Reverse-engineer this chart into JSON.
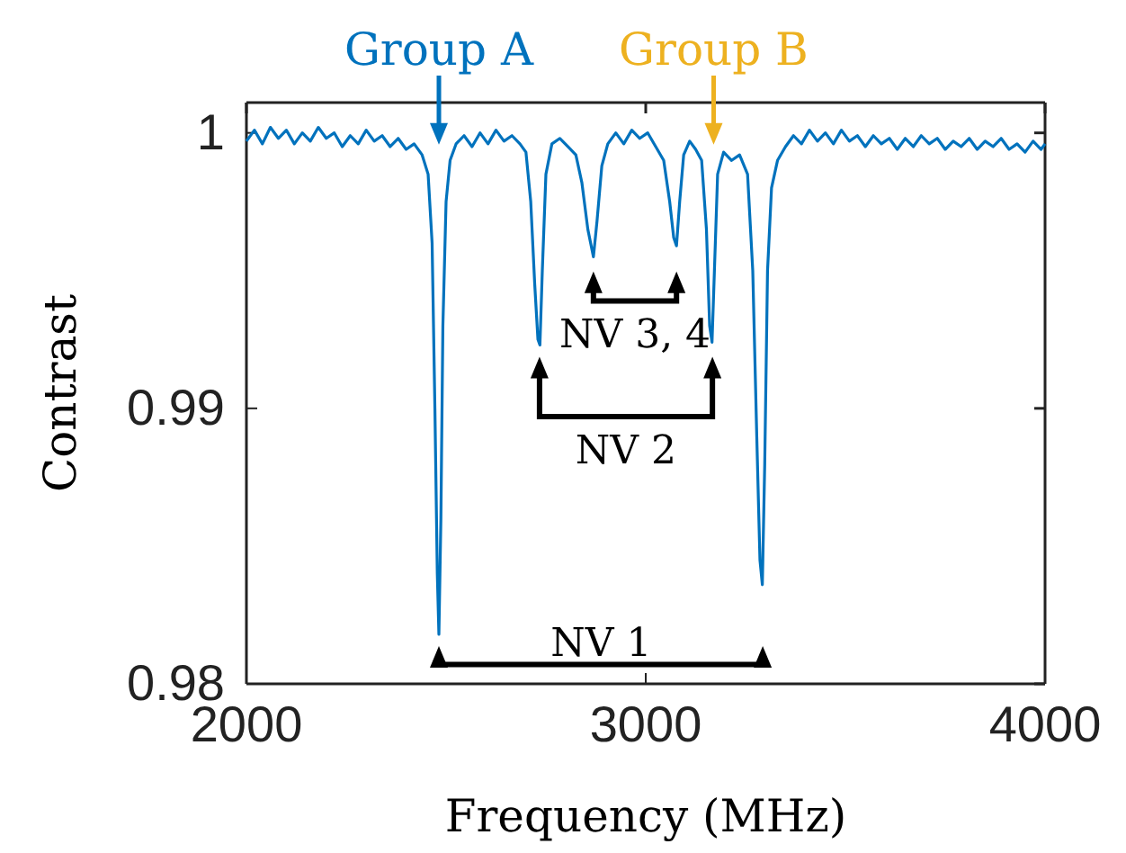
{
  "chart_data": {
    "type": "line",
    "xlabel": "Frequency (MHz)",
    "ylabel": "Contrast",
    "xlim": [
      2000,
      4000
    ],
    "xticks": [
      2000,
      3000,
      4000
    ],
    "ylim": [
      0.98,
      1.0011
    ],
    "yticks": [
      {
        "value": 1,
        "label": "1"
      },
      0.99,
      0.98
    ],
    "grid": false,
    "series": [
      {
        "color": "#0072bd",
        "x": [
          2000,
          2020,
          2040,
          2060,
          2080,
          2100,
          2120,
          2140,
          2160,
          2180,
          2200,
          2220,
          2240,
          2260,
          2280,
          2300,
          2320,
          2340,
          2360,
          2380,
          2400,
          2420,
          2440,
          2455,
          2465,
          2472,
          2478,
          2482,
          2487,
          2492,
          2500,
          2510,
          2525,
          2545,
          2565,
          2585,
          2605,
          2625,
          2645,
          2665,
          2685,
          2700,
          2712,
          2722,
          2730,
          2735,
          2741,
          2750,
          2765,
          2785,
          2805,
          2825,
          2840,
          2855,
          2869,
          2878,
          2890,
          2905,
          2925,
          2945,
          2965,
          2985,
          3005,
          3025,
          3045,
          3060,
          3070,
          3077,
          3085,
          3095,
          3110,
          3125,
          3140,
          3152,
          3160,
          3166,
          3172,
          3180,
          3195,
          3215,
          3235,
          3255,
          3268,
          3278,
          3286,
          3292,
          3298,
          3305,
          3315,
          3330,
          3350,
          3370,
          3390,
          3410,
          3430,
          3450,
          3470,
          3490,
          3510,
          3530,
          3550,
          3570,
          3590,
          3610,
          3630,
          3650,
          3670,
          3690,
          3710,
          3730,
          3750,
          3770,
          3790,
          3810,
          3830,
          3850,
          3870,
          3890,
          3910,
          3930,
          3950,
          3970,
          3990,
          4000
        ],
        "values": [
          0.9997,
          1.0001,
          0.9996,
          1.0002,
          0.9998,
          1.0001,
          0.9996,
          1.0,
          0.9997,
          1.0002,
          0.9998,
          1.0,
          0.9995,
          0.9999,
          0.9996,
          1.0001,
          0.9997,
          0.9999,
          0.9995,
          0.9998,
          0.9994,
          0.9996,
          0.9992,
          0.9985,
          0.996,
          0.99,
          0.984,
          0.9818,
          0.986,
          0.993,
          0.9975,
          0.999,
          0.9996,
          0.9999,
          0.9995,
          1.0,
          0.9996,
          1.0001,
          0.9997,
          0.9999,
          0.9996,
          0.9993,
          0.9975,
          0.9945,
          0.9925,
          0.9923,
          0.995,
          0.9985,
          0.9996,
          0.9998,
          0.9995,
          0.9992,
          0.9982,
          0.9965,
          0.9955,
          0.9968,
          0.9988,
          0.9996,
          1.0,
          0.9996,
          1.0001,
          0.9998,
          1.0,
          0.9995,
          0.999,
          0.9975,
          0.9962,
          0.9959,
          0.9975,
          0.9992,
          0.9997,
          0.9994,
          0.999,
          0.9965,
          0.993,
          0.9924,
          0.995,
          0.9985,
          0.9993,
          0.999,
          0.9992,
          0.9985,
          0.995,
          0.989,
          0.9845,
          0.9836,
          0.988,
          0.995,
          0.998,
          0.999,
          0.9995,
          0.9999,
          0.9996,
          1.0001,
          0.9997,
          1.0,
          0.9996,
          1.0001,
          0.9997,
          0.9999,
          0.9995,
          0.9999,
          0.9996,
          0.9998,
          0.9994,
          0.9998,
          0.9995,
          0.9999,
          0.9996,
          0.9998,
          0.9994,
          0.9997,
          0.9995,
          0.9998,
          0.9994,
          0.9997,
          0.9995,
          0.9998,
          0.9994,
          0.9996,
          0.9993,
          0.9997,
          0.9994,
          0.9996
        ]
      }
    ],
    "annotations": [
      "Group A",
      "Group B",
      "NV 3, 4",
      "NV 2",
      "NV 1"
    ]
  }
}
